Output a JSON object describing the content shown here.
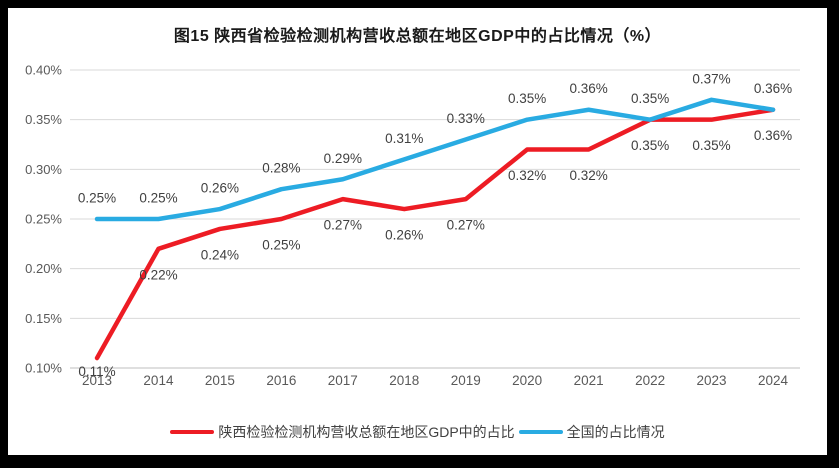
{
  "frame": {
    "background_color": "#000000",
    "card_color": "#ffffff"
  },
  "colors": {
    "series_shaanxi": "#ed1c24",
    "series_national": "#29abe2",
    "gridline": "#d9d9d9",
    "axis_line": "#bfbfbf",
    "tick_label": "#595959",
    "data_label": "#404040",
    "title": "#1a1a1a"
  },
  "chart_data": {
    "type": "line",
    "title": "图15 陕西省检验检测机构营收总额在地区GDP中的占比情况（%）",
    "unit": "%",
    "grid": true,
    "legend_position": "bottom",
    "categories": [
      "2013",
      "2014",
      "2015",
      "2016",
      "2017",
      "2018",
      "2019",
      "2020",
      "2021",
      "2022",
      "2023",
      "2024"
    ],
    "y_ticks": [
      "0.40%",
      "0.35%",
      "0.30%",
      "0.25%",
      "0.20%",
      "0.15%",
      "0.10%"
    ],
    "ylim": [
      0.1,
      0.4
    ],
    "series": [
      {
        "name": "陕西检验检测机构营收总额在地区GDP中的占比",
        "color": "#ed1c24",
        "label_position": "below",
        "values": [
          0.11,
          0.22,
          0.24,
          0.25,
          0.27,
          0.26,
          0.27,
          0.32,
          0.32,
          0.35,
          0.35,
          0.36
        ],
        "labels": [
          "0.11%",
          "0.22%",
          "0.24%",
          "0.25%",
          "0.27%",
          "0.26%",
          "0.27%",
          "0.32%",
          "0.32%",
          "0.35%",
          "0.35%",
          "0.36%"
        ]
      },
      {
        "name": "全国的占比情况",
        "color": "#29abe2",
        "label_position": "above",
        "values": [
          0.25,
          0.25,
          0.26,
          0.28,
          0.29,
          0.31,
          0.33,
          0.35,
          0.36,
          0.35,
          0.37,
          0.36
        ],
        "labels": [
          "0.25%",
          "0.25%",
          "0.26%",
          "0.28%",
          "0.29%",
          "0.31%",
          "0.33%",
          "0.35%",
          "0.36%",
          "0.35%",
          "0.37%",
          "0.36%"
        ]
      }
    ]
  }
}
